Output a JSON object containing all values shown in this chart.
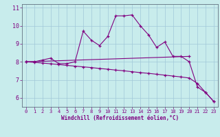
{
  "xlabel": "Windchill (Refroidissement éolien,°C)",
  "bg_color": "#c8ecec",
  "line_color": "#800080",
  "grid_color": "#a0c8d8",
  "xlim": [
    -0.5,
    23.5
  ],
  "ylim": [
    5.5,
    11.2
  ],
  "xticks": [
    0,
    1,
    2,
    3,
    4,
    5,
    6,
    7,
    8,
    9,
    10,
    11,
    12,
    13,
    14,
    15,
    16,
    17,
    18,
    19,
    20,
    21,
    22,
    23
  ],
  "yticks": [
    6,
    7,
    8,
    9,
    10,
    11
  ],
  "curve1_x": [
    0,
    1,
    2,
    3,
    4,
    5,
    6,
    7,
    8,
    9,
    10,
    11,
    12,
    13,
    14,
    15,
    16,
    17,
    18,
    19,
    20,
    21,
    22,
    23
  ],
  "curve1_y": [
    8.0,
    8.0,
    8.1,
    8.2,
    7.9,
    7.9,
    8.0,
    9.7,
    9.2,
    8.9,
    9.4,
    10.55,
    10.55,
    10.6,
    10.0,
    9.5,
    8.8,
    9.1,
    8.3,
    8.3,
    8.0,
    6.6,
    6.3,
    5.8
  ],
  "curve2_x": [
    0,
    20
  ],
  "curve2_y": [
    8.0,
    8.3
  ],
  "curve3_x": [
    0,
    1,
    2,
    3,
    4,
    5,
    6,
    7,
    8,
    9,
    10,
    11,
    12,
    13,
    14,
    15,
    16,
    17,
    18,
    19,
    20,
    21,
    22,
    23
  ],
  "curve3_y": [
    8.0,
    7.97,
    7.93,
    7.89,
    7.85,
    7.8,
    7.76,
    7.72,
    7.68,
    7.63,
    7.59,
    7.54,
    7.5,
    7.45,
    7.4,
    7.36,
    7.31,
    7.26,
    7.21,
    7.16,
    7.1,
    6.8,
    6.3,
    5.8
  ]
}
